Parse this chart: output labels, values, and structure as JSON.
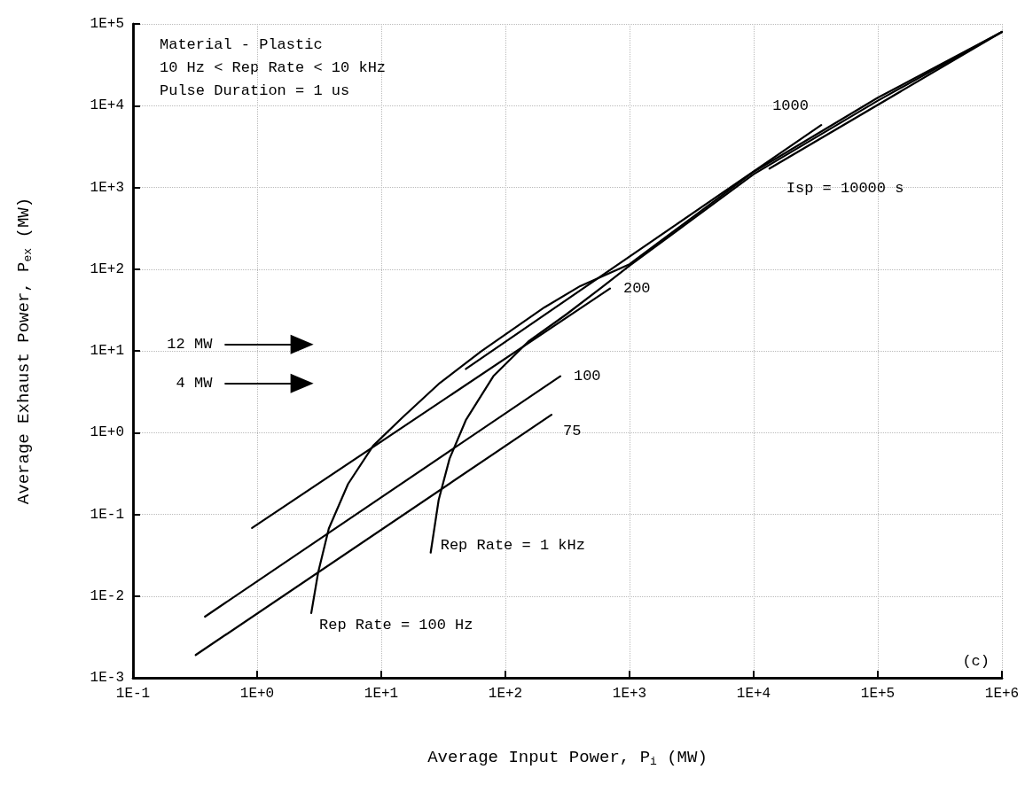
{
  "chart_data": {
    "type": "line",
    "xlabel": "Average Input Power, P$_{i}$ (MW)",
    "ylabel": "Average Exhaust Power, P$_{ex}$ (MW)",
    "log": "xy",
    "grid": true,
    "marker": "none",
    "line_style": "solid",
    "xlim": [
      0.1,
      1000000
    ],
    "ylim": [
      0.001,
      100000
    ],
    "xticks": [
      {
        "value": 0.1,
        "label": "1E-1"
      },
      {
        "value": 1,
        "label": "1E+0"
      },
      {
        "value": 10,
        "label": "1E+1"
      },
      {
        "value": 100,
        "label": "1E+2"
      },
      {
        "value": 1000,
        "label": "1E+3"
      },
      {
        "value": 10000,
        "label": "1E+4"
      },
      {
        "value": 100000,
        "label": "1E+5"
      },
      {
        "value": 1000000,
        "label": "1E+6"
      }
    ],
    "yticks": [
      {
        "value": 0.001,
        "label": "1E-3"
      },
      {
        "value": 0.01,
        "label": "1E-2"
      },
      {
        "value": 0.1,
        "label": "1E-1"
      },
      {
        "value": 1,
        "label": "1E+0"
      },
      {
        "value": 10,
        "label": "1E+1"
      },
      {
        "value": 100,
        "label": "1E+2"
      },
      {
        "value": 1000,
        "label": "1E+3"
      },
      {
        "value": 10000,
        "label": "1E+4"
      },
      {
        "value": 100000,
        "label": "1E+5"
      }
    ],
    "series": [
      {
        "name": "75",
        "color": "#000000",
        "x": [
          0.32,
          235
        ],
        "values": [
          0.0019,
          1.65
        ]
      },
      {
        "name": "100",
        "color": "#000000",
        "x": [
          0.38,
          277
        ],
        "values": [
          0.0056,
          4.9
        ]
      },
      {
        "name": "200",
        "color": "#000000",
        "x": [
          0.91,
          696
        ],
        "values": [
          0.068,
          58
        ]
      },
      {
        "name": "1000",
        "color": "#000000",
        "x": [
          48,
          35000
        ],
        "values": [
          6,
          5800
        ]
      },
      {
        "name": "Isp = 10000 s",
        "color": "#000000",
        "x": [
          13400,
          1000000
        ],
        "values": [
          1700,
          80000
        ]
      },
      {
        "name": "Rep Rate = 100 Hz",
        "color": "#000000",
        "x": [
          2.73,
          3.1,
          3.78,
          5.4,
          8.6,
          14.8,
          29.6,
          64,
          206,
          400,
          1000,
          10000,
          100000,
          1000000
        ],
        "values": [
          0.0062,
          0.0194,
          0.067,
          0.235,
          0.69,
          1.53,
          4.04,
          9.9,
          34,
          62,
          115,
          1550,
          12500,
          80000
        ]
      },
      {
        "name": "Rep Rate = 1 kHz",
        "color": "#000000",
        "x": [
          25,
          29,
          35.5,
          48,
          80,
          153,
          310,
          600,
          1000,
          10000,
          100000,
          1000000
        ],
        "values": [
          0.034,
          0.15,
          0.48,
          1.42,
          4.9,
          13,
          28,
          60,
          110,
          1450,
          11500,
          80000
        ]
      }
    ],
    "annotations": [
      "Material - Plastic",
      "10 Hz < Rep Rate < 10 kHz",
      "Pulse Duration = 1 us",
      {
        "text": "12 MW",
        "x": 2.3,
        "y": 12
      },
      {
        "text": "4 MW",
        "x": 2.3,
        "y": 4
      },
      "(c)"
    ]
  }
}
